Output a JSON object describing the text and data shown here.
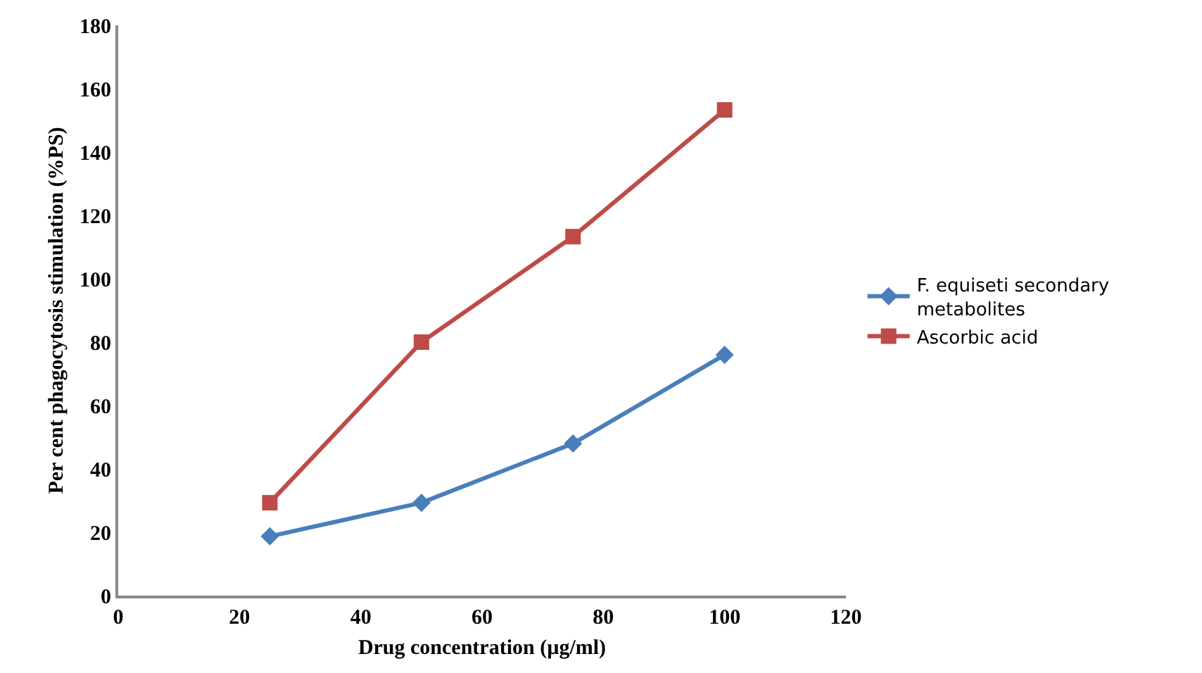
{
  "chart_data": {
    "type": "line",
    "xlabel": "Drug concentration (µg/ml)",
    "ylabel": "Per cent phagocytosis stimulation (%PS)",
    "x": [
      25,
      50,
      75,
      100
    ],
    "series": [
      {
        "name": "F. equiseti secondary metabolites",
        "color": "#4a7ebb",
        "marker": "diamond",
        "values": [
          18.7,
          29.3,
          48,
          76
        ]
      },
      {
        "name": "Ascorbic acid",
        "color": "#be4b48",
        "marker": "square",
        "values": [
          29.3,
          80,
          113.3,
          153.3
        ]
      }
    ],
    "xlim": [
      0,
      120
    ],
    "xticks": [
      0,
      20,
      40,
      60,
      80,
      100,
      120
    ],
    "ylim": [
      0,
      180
    ],
    "yticks": [
      0,
      20,
      40,
      60,
      80,
      100,
      120,
      140,
      160,
      180
    ],
    "legend": "right",
    "line_style": "solid"
  }
}
